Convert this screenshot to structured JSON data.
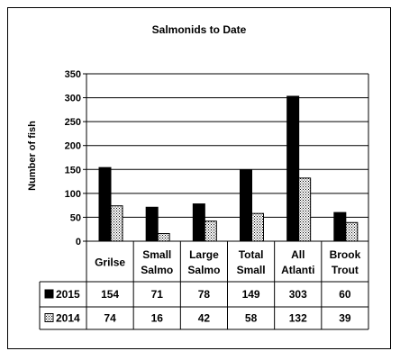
{
  "chart_data": {
    "type": "bar",
    "title": "Salmonids to Date",
    "ylabel": "Number of fish",
    "xlabel": "",
    "ylim": [
      0,
      350
    ],
    "yticks": [
      0,
      50,
      100,
      150,
      200,
      250,
      300,
      350
    ],
    "grid": true,
    "legend": "table-left",
    "categories": [
      [
        "Grilse"
      ],
      [
        "Small",
        "Salmo"
      ],
      [
        "Large",
        "Salmo"
      ],
      [
        "Total",
        "Small"
      ],
      [
        "All",
        "Atlanti"
      ],
      [
        "Brook",
        "Trout"
      ]
    ],
    "series": [
      {
        "name": "2015",
        "values": [
          154,
          71,
          78,
          149,
          303,
          60
        ],
        "color": "#000000",
        "pattern": "solid"
      },
      {
        "name": "2014",
        "values": [
          74,
          16,
          42,
          58,
          132,
          39
        ],
        "color": "#ffffff",
        "pattern": "dotted"
      }
    ]
  }
}
